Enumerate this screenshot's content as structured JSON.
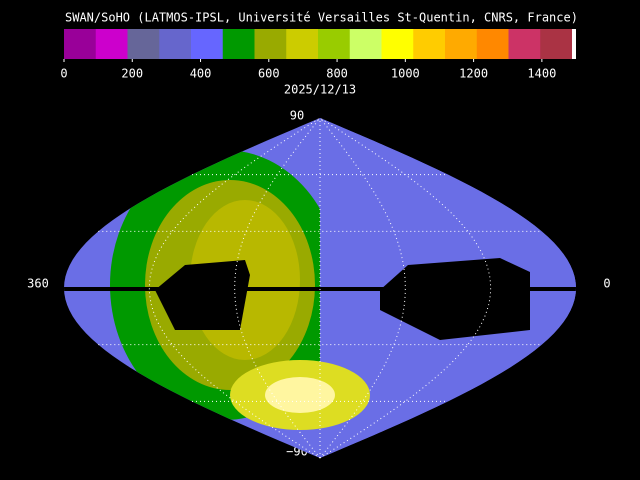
{
  "title": "SWAN/SoHO (LATMOS-IPSL, Université Versailles St-Quentin, CNRS, France)",
  "colorbar": {
    "lim": [
      0,
      1500
    ],
    "ticks": [
      0,
      200,
      400,
      600,
      800,
      1000,
      1200,
      1400
    ],
    "colors": [
      "#990099",
      "#cc00cc",
      "#666699",
      "#6666cc",
      "#6666ff",
      "#009900",
      "#99aa00",
      "#cccc00",
      "#99cc00",
      "#ccff66",
      "#ffff00",
      "#ffcc00",
      "#ffaa00",
      "#ff8800",
      "#cc3366",
      "#aa3344"
    ]
  },
  "date": "2025/12/13",
  "map": {
    "top_label": "90",
    "bottom_label": "−90",
    "left_label": "360",
    "right_label": "0"
  }
}
